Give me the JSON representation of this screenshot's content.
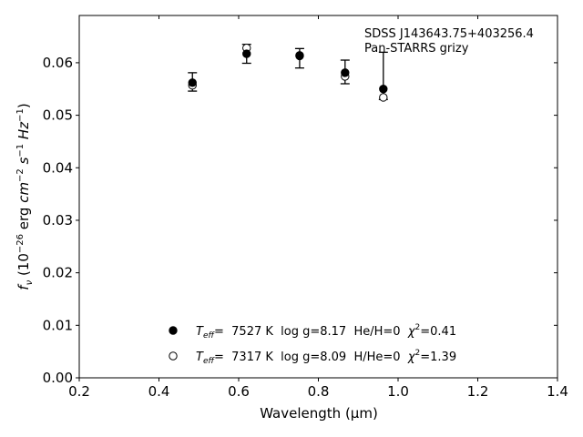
{
  "chart_data": {
    "type": "scatter",
    "xlabel": "Wavelength (μm)",
    "ylabel": "f_ν (10^-26 erg cm^-2 s^-1 Hz^-1)",
    "xlim": [
      0.2,
      1.4
    ],
    "ylim": [
      0.0,
      0.069
    ],
    "xticks": [
      0.2,
      0.4,
      0.6,
      0.8,
      1.0,
      1.2,
      1.4
    ],
    "xtick_labels": [
      "0.2",
      "0.4",
      "0.6",
      "0.8",
      "1.0",
      "1.2",
      "1.4"
    ],
    "yticks": [
      0.0,
      0.01,
      0.02,
      0.03,
      0.04,
      0.05,
      0.06
    ],
    "ytick_labels": [
      "0.00",
      "0.01",
      "0.02",
      "0.03",
      "0.04",
      "0.05",
      "0.06"
    ],
    "grid": false,
    "annotations": [
      "SDSS J143643.75+403256.4",
      "Pan-STARRS grizy"
    ],
    "observed": {
      "x": [
        0.484,
        0.62,
        0.753,
        0.867,
        0.963
      ],
      "y": [
        0.0564,
        0.0617,
        0.0609,
        0.0584,
        0.0575
      ],
      "yerr_low": [
        0.0546,
        0.0599,
        0.059,
        0.056,
        0.053
      ],
      "yerr_high": [
        0.0581,
        0.0635,
        0.0627,
        0.0605,
        0.062
      ]
    },
    "series": [
      {
        "marker": "filled",
        "label_parts": [
          "T",
          "eff",
          "=  7527 K  log g=8.17  He/H=0  ",
          "χ",
          "2",
          "=0.41"
        ],
        "x": [
          0.484,
          0.62,
          0.753,
          0.867,
          0.963
        ],
        "y": [
          0.0562,
          0.0617,
          0.0613,
          0.0581,
          0.055
        ]
      },
      {
        "marker": "open",
        "label_parts": [
          "T",
          "eff",
          "=  7317 K  log g=8.09  H/He=0  ",
          "χ",
          "2",
          "=1.39"
        ],
        "x": [
          0.484,
          0.62,
          0.753,
          0.867,
          0.963
        ],
        "y": [
          0.0557,
          0.0628,
          0.0614,
          0.0574,
          0.0534
        ]
      }
    ],
    "legend_placement": "lower-center",
    "colors": {
      "axis": "#000000",
      "marker": "#000000",
      "background": "#ffffff"
    }
  }
}
